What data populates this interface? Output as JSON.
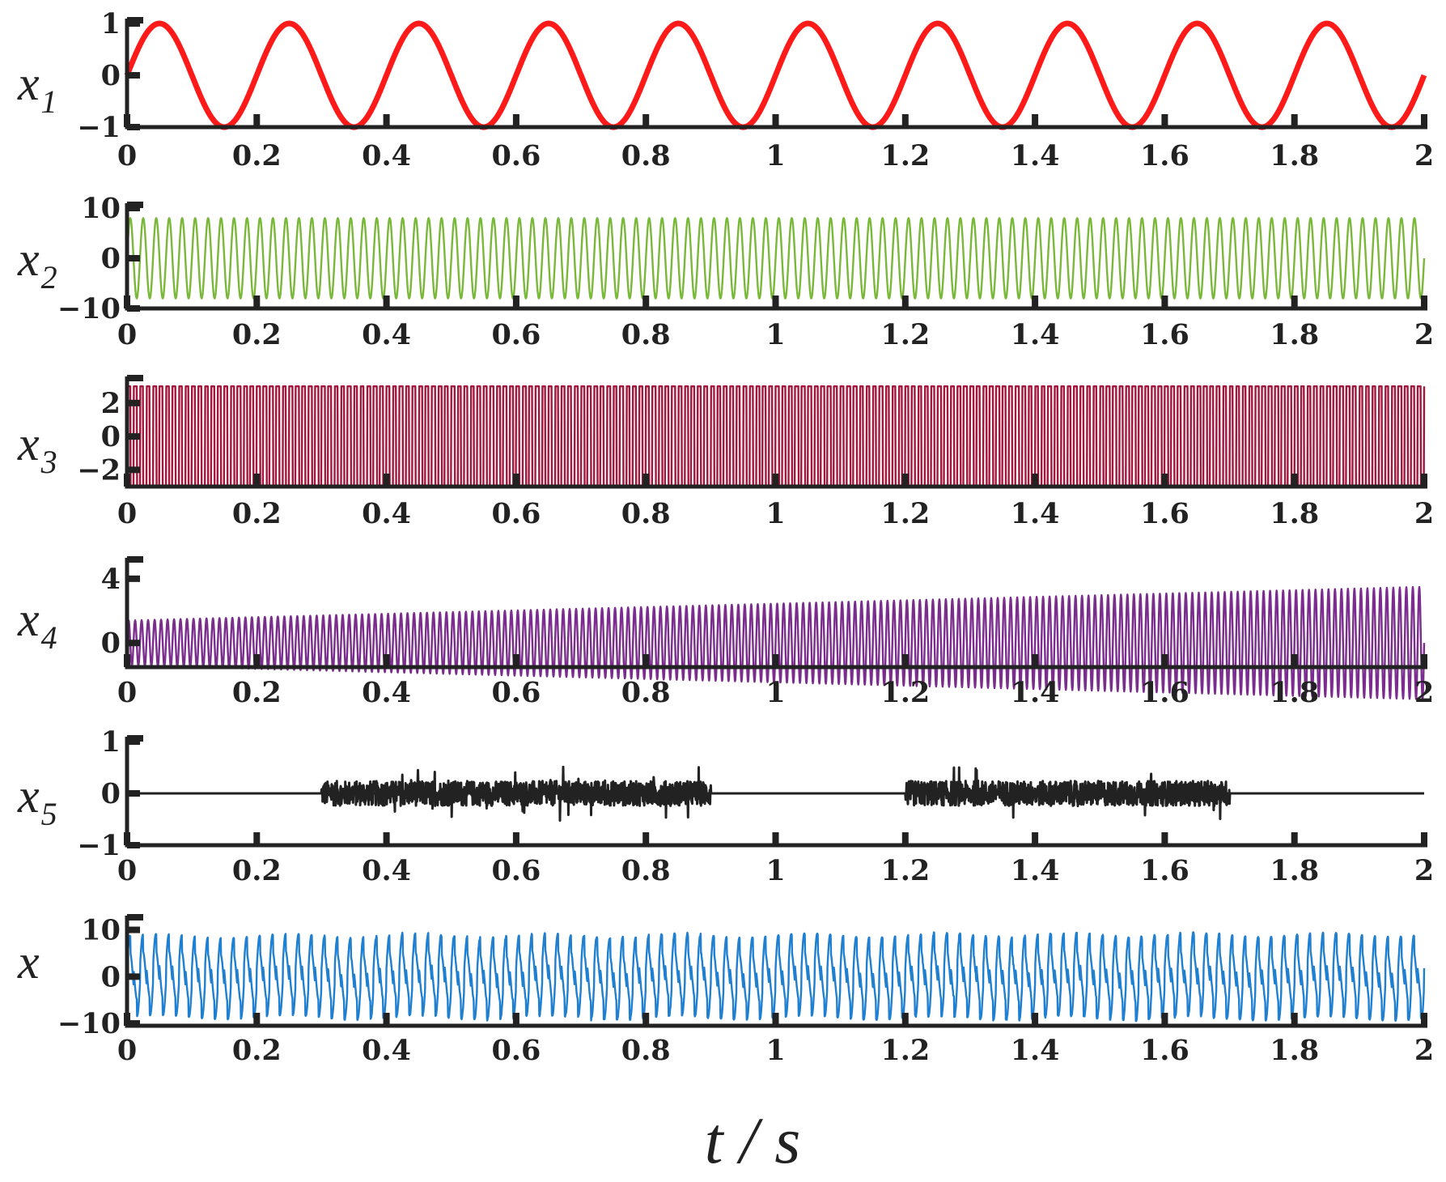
{
  "chart_data": {
    "type": "line",
    "xlabel": "t / s",
    "x_range": [
      0,
      2
    ],
    "x_ticks": [
      "0",
      "0.2",
      "0.4",
      "0.6",
      "0.8",
      "1",
      "1.2",
      "1.4",
      "1.6",
      "1.8",
      "2"
    ],
    "panels": [
      {
        "id": "x1",
        "ylabel": "x",
        "subscript": "1",
        "color": "#ff1a1a",
        "ylim": [
          -1,
          1
        ],
        "yticks": [
          "1",
          "0",
          "−1"
        ],
        "ytick_values": [
          1,
          0,
          -1
        ],
        "signal": {
          "kind": "sine",
          "amplitude": 1,
          "frequency_hz": 5,
          "offset": 0
        }
      },
      {
        "id": "x2",
        "ylabel": "x",
        "subscript": "2",
        "color": "#7ab83a",
        "ylim": [
          -10,
          10
        ],
        "yticks": [
          "10",
          "0",
          "−10"
        ],
        "ytick_values": [
          10,
          0,
          -10
        ],
        "signal": {
          "kind": "sine",
          "amplitude": 8,
          "frequency_hz": 50,
          "offset": 0
        }
      },
      {
        "id": "x3",
        "ylabel": "x",
        "subscript": "3",
        "color": "#a3173d",
        "ylim": [
          -3,
          3.3
        ],
        "yticks": [
          "2",
          "0",
          "−2"
        ],
        "ytick_values": [
          2,
          0,
          -2
        ],
        "signal": {
          "kind": "square",
          "amplitude": 3,
          "frequency_hz": 100,
          "offset": 0
        }
      },
      {
        "id": "x4",
        "ylabel": "x",
        "subscript": "4",
        "color": "#7b2d8e",
        "ylim": [
          -1.5,
          5
        ],
        "yticks": [
          "4",
          "0"
        ],
        "ytick_values": [
          4,
          0
        ],
        "signal": {
          "kind": "chirp-envelope",
          "envelope_start": 1.4,
          "envelope_end": 3.5,
          "offset_start": 0,
          "offset_end": 0,
          "frequency_hz": 100
        }
      },
      {
        "id": "x5",
        "ylabel": "x",
        "subscript": "5",
        "color": "#222222",
        "ylim": [
          -1,
          1
        ],
        "yticks": [
          "1",
          "0",
          "−1"
        ],
        "ytick_values": [
          1,
          0,
          -1
        ],
        "signal": {
          "kind": "bursts",
          "bursts": [
            [
              0.3,
              0.9
            ],
            [
              1.2,
              1.7
            ]
          ],
          "noise_amplitude": 0.3
        }
      },
      {
        "id": "x",
        "ylabel": "x",
        "subscript": "",
        "color": "#1f7fd0",
        "ylim": [
          -10.5,
          12
        ],
        "yticks": [
          "10",
          "0",
          "−10"
        ],
        "ytick_values": [
          10,
          0,
          -10
        ],
        "signal": {
          "kind": "sum",
          "components": [
            "x1",
            "x2",
            "x3",
            "x4",
            "x5"
          ]
        }
      }
    ]
  }
}
